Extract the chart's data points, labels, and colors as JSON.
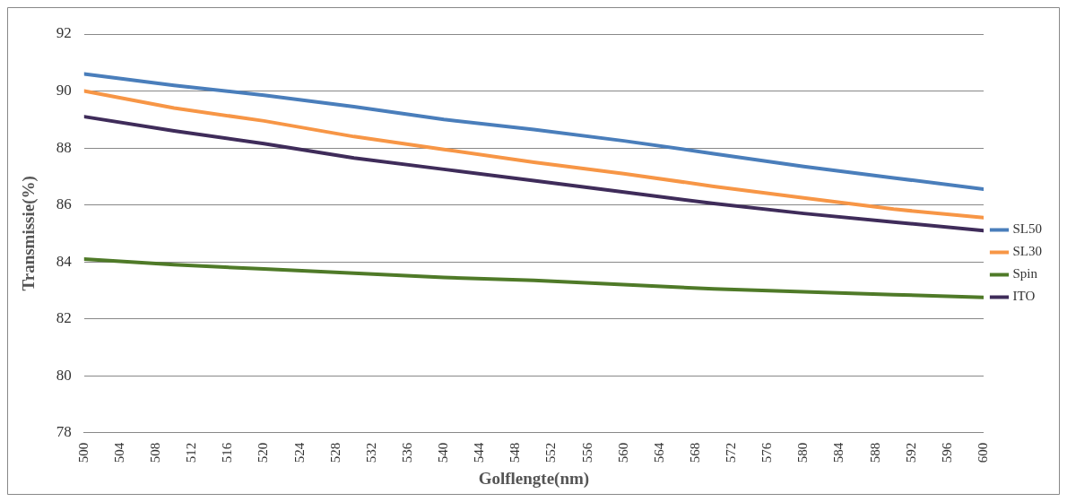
{
  "chart_data": {
    "type": "line",
    "xlabel": "Golflengte(nm)",
    "ylabel": "Transmissie(%)",
    "x": [
      500,
      510,
      520,
      530,
      540,
      550,
      560,
      570,
      580,
      590,
      600
    ],
    "series": [
      {
        "name": "SL50",
        "color": "#4a7ebb",
        "values": [
          90.6,
          90.2,
          89.85,
          89.45,
          89.0,
          88.65,
          88.25,
          87.8,
          87.35,
          86.95,
          86.55
        ]
      },
      {
        "name": "SL30",
        "color": "#f79646",
        "values": [
          90.0,
          89.4,
          88.95,
          88.4,
          87.95,
          87.5,
          87.1,
          86.65,
          86.25,
          85.85,
          85.55
        ]
      },
      {
        "name": "Spin",
        "color": "#4f7a28",
        "values": [
          84.1,
          83.9,
          83.75,
          83.6,
          83.45,
          83.35,
          83.2,
          83.05,
          82.95,
          82.85,
          82.75
        ]
      },
      {
        "name": "ITO",
        "color": "#3f2c5a",
        "values": [
          89.1,
          88.6,
          88.15,
          87.65,
          87.25,
          86.85,
          86.45,
          86.05,
          85.7,
          85.4,
          85.1
        ]
      }
    ],
    "xlim": [
      500,
      600
    ],
    "xticks": [
      500,
      504,
      508,
      512,
      516,
      520,
      524,
      528,
      532,
      536,
      540,
      544,
      548,
      552,
      556,
      560,
      564,
      568,
      572,
      576,
      580,
      584,
      588,
      592,
      596,
      600
    ],
    "ylim": [
      78,
      92
    ],
    "yticks": [
      78,
      80,
      82,
      84,
      86,
      88,
      90,
      92
    ],
    "grid": "y",
    "legend": "right",
    "marker": "none",
    "line_style": "solid"
  }
}
